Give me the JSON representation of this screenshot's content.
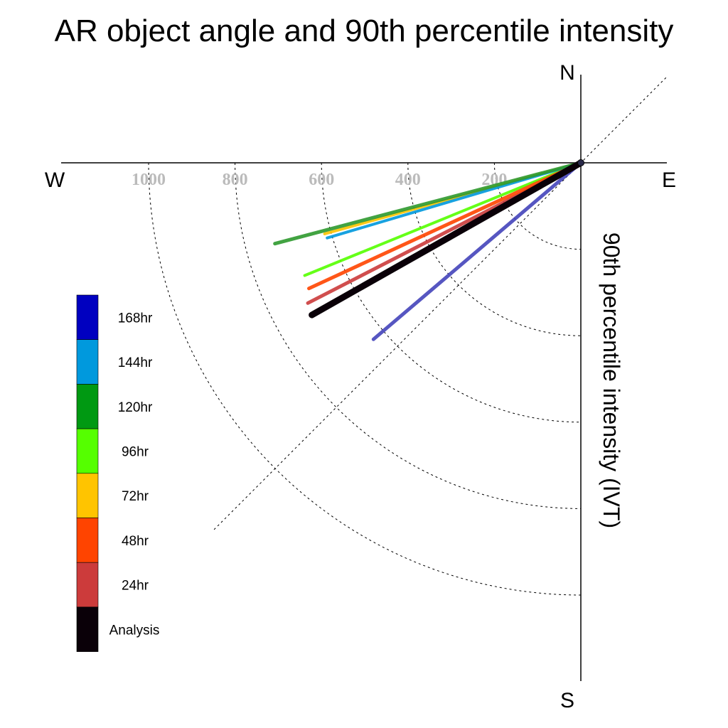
{
  "chart_data": {
    "type": "polar-line",
    "title": "AR object angle and 90th percentile intensity",
    "radial_label": "90th percentile intensity (IVT)",
    "compass": {
      "north": "N",
      "south": "S",
      "east": "E",
      "west": "W"
    },
    "radial_ticks": [
      "1000",
      "800",
      "600",
      "400",
      "200"
    ],
    "radial_tick_values": [
      1000,
      800,
      600,
      400,
      200
    ],
    "radial_max": 1200,
    "series": [
      {
        "name": "Analysis",
        "color": "#0a0008",
        "intensity": 715,
        "angle_deg_below_west": 29.5,
        "width": 9
      },
      {
        "name": "24hr",
        "color": "#cc3b3b",
        "intensity": 710,
        "angle_deg_below_west": 27.2,
        "width": 5
      },
      {
        "name": "48hr",
        "color": "#ff4400",
        "intensity": 693,
        "angle_deg_below_west": 24.8,
        "width": 5
      },
      {
        "name": "72hr",
        "color": "#ffc400",
        "intensity": 615,
        "angle_deg_below_west": 15.5,
        "width": 4
      },
      {
        "name": "96hr",
        "color": "#55ff00",
        "intensity": 690,
        "angle_deg_below_west": 22.2,
        "width": 4
      },
      {
        "name": "120hr",
        "color": "#2e9a2e",
        "intensity": 732,
        "angle_deg_below_west": 14.8,
        "width": 5
      },
      {
        "name": "144hr",
        "color": "#0099dd",
        "intensity": 612,
        "angle_deg_below_west": 16.5,
        "width": 4
      },
      {
        "name": "168hr",
        "color": "#4444bb",
        "intensity": 630,
        "angle_deg_below_west": 40.4,
        "width": 5
      }
    ],
    "legend": {
      "placement": "left",
      "items": [
        {
          "label": "168hr",
          "color": "#0000c0"
        },
        {
          "label": "144hr",
          "color": "#0099dd"
        },
        {
          "label": "120hr",
          "color": "#009912"
        },
        {
          "label": "96hr",
          "color": "#55ff00"
        },
        {
          "label": "72hr",
          "color": "#ffc400"
        },
        {
          "label": "48hr",
          "color": "#ff4400"
        },
        {
          "label": "24hr",
          "color": "#cc3b3b"
        },
        {
          "label": "Analysis",
          "color": "#0a0008"
        }
      ]
    }
  }
}
